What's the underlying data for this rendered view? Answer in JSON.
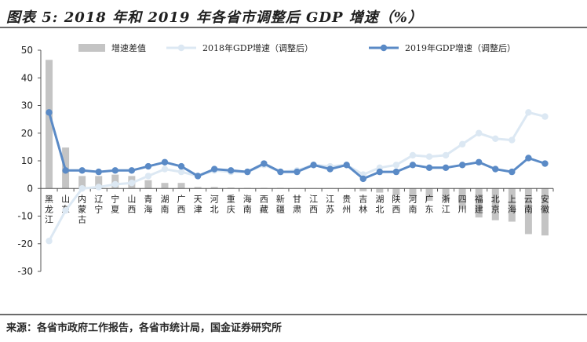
{
  "title": "图表 5:  2018 年和 2019 年各省市调整后 GDP 增速（%）",
  "source": "来源：各省市政府工作报告，各省市统计局，国金证券研究所",
  "chart_data": {
    "type": "bar",
    "ylim": [
      -30,
      50
    ],
    "yticks": [
      50,
      40,
      30,
      20,
      10,
      0,
      -10,
      -20,
      -30
    ],
    "grid": false,
    "legend_position": "top",
    "categories": [
      "黑龙江",
      "山东",
      "内蒙古",
      "辽宁",
      "宁夏",
      "山西",
      "青海",
      "湖南",
      "广西",
      "天津",
      "河北",
      "重庆",
      "海南",
      "西藏",
      "新疆",
      "甘肃",
      "江西",
      "江苏",
      "贵州",
      "吉林",
      "湖北",
      "陕西",
      "河南",
      "广东",
      "浙江",
      "四川",
      "福建",
      "北京",
      "上海",
      "云南",
      "安徽"
    ],
    "series": [
      {
        "name": "增速差值",
        "kind": "bar",
        "color": "#c4c4c4",
        "values": [
          46.5,
          14.8,
          4.5,
          4.5,
          5.0,
          4.5,
          3.0,
          2.0,
          2.0,
          0.5,
          0.5,
          0.3,
          0.2,
          0.2,
          0.2,
          0.1,
          0.1,
          0.1,
          0.1,
          -1.0,
          -1.5,
          -2.5,
          -3.5,
          -4.5,
          -4.5,
          -7.5,
          -10.5,
          -11.5,
          -12.0,
          -16.5,
          -17.0
        ]
      },
      {
        "name": "2018年GDP增速（调整后）",
        "kind": "line",
        "color": "#dce8f3",
        "values": [
          -19.0,
          -8.0,
          0.0,
          0.5,
          1.5,
          2.0,
          4.5,
          7.0,
          6.0,
          4.5,
          6.5,
          6.0,
          6.0,
          8.5,
          6.0,
          6.5,
          8.5,
          8.0,
          8.5,
          5.0,
          7.5,
          8.5,
          12.0,
          11.5,
          12.0,
          16.0,
          20.0,
          18.0,
          17.5,
          27.5,
          26.0
        ]
      },
      {
        "name": "2019年GDP增速（调整后）",
        "kind": "line",
        "color": "#5a8ac6",
        "values": [
          27.5,
          6.5,
          6.5,
          6.0,
          6.5,
          6.5,
          8.0,
          9.5,
          8.0,
          4.5,
          7.0,
          6.5,
          6.0,
          9.0,
          6.0,
          6.0,
          8.5,
          7.0,
          8.5,
          3.5,
          6.0,
          6.0,
          8.5,
          7.5,
          7.5,
          8.5,
          9.5,
          7.0,
          6.0,
          11.0,
          9.0
        ]
      }
    ]
  }
}
